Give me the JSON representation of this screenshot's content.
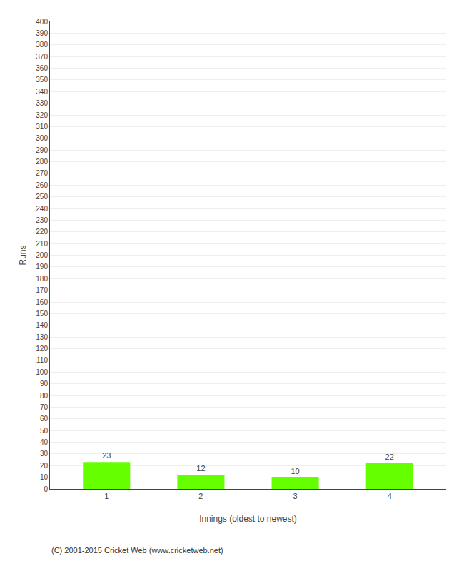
{
  "chart_data": {
    "type": "bar",
    "x": [
      1,
      2,
      3,
      4
    ],
    "values": [
      23,
      12,
      10,
      22
    ],
    "color": "#66ff00",
    "xlabel": "Innings (oldest to newest)",
    "ylabel": "Runs",
    "xlim": [
      0.4,
      4.6
    ],
    "xticks": [
      1,
      2,
      3,
      4
    ],
    "ylim": [
      0,
      400
    ],
    "yticks": [
      0,
      10,
      20,
      30,
      40,
      50,
      60,
      70,
      80,
      90,
      100,
      110,
      120,
      130,
      140,
      150,
      160,
      170,
      180,
      190,
      200,
      210,
      220,
      230,
      240,
      250,
      260,
      270,
      280,
      290,
      300,
      310,
      320,
      330,
      340,
      350,
      360,
      370,
      380,
      390,
      400
    ],
    "grid": true,
    "data_labels": true,
    "annotations": [
      "(C) 2001-2015 Cricket Web (www.cricketweb.net)"
    ]
  }
}
